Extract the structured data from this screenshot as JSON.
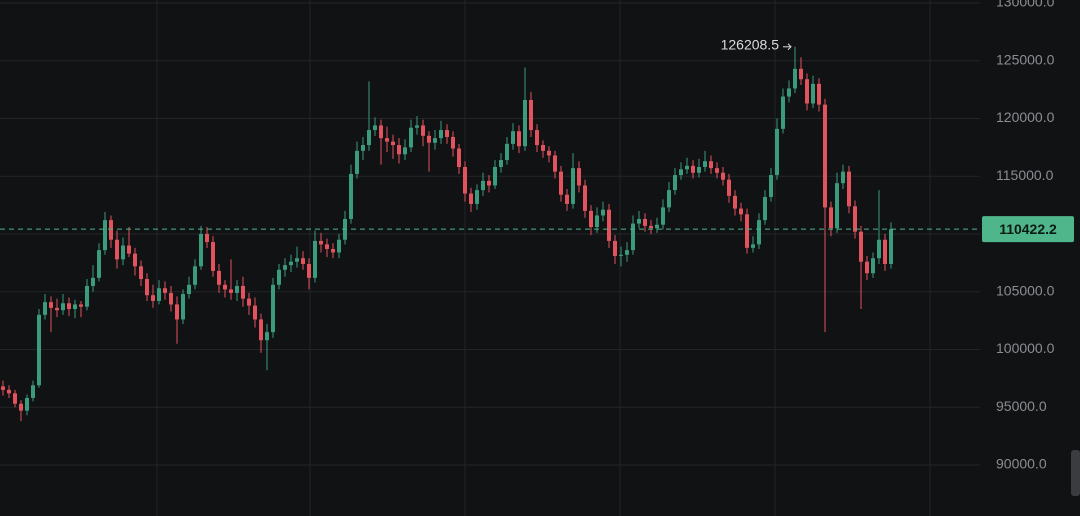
{
  "chart_data": {
    "type": "candlestick",
    "up_color": "#3a9b7d",
    "down_color": "#e2535e",
    "last_color": "#4fb68c",
    "ylim": [
      85580,
      130260
    ],
    "yticks": [
      {
        "value": 90000,
        "label": "90000.0"
      },
      {
        "value": 95000,
        "label": "95000.0"
      },
      {
        "value": 100000,
        "label": "100000.0"
      },
      {
        "value": 105000,
        "label": "105000.0"
      },
      {
        "value": 110000,
        "label": "110000.0"
      },
      {
        "value": 115000,
        "label": "115000.0"
      },
      {
        "value": 120000,
        "label": "120000.0"
      },
      {
        "value": 125000,
        "label": "125000.0"
      },
      {
        "value": 130000,
        "label": "130000.0"
      }
    ],
    "grid": true,
    "annotate_high": 132,
    "last_price_line": true,
    "candles": [
      [
        96800,
        97300,
        96000,
        96500
      ],
      [
        96500,
        96900,
        95800,
        96200
      ],
      [
        96200,
        96500,
        95000,
        95300
      ],
      [
        95300,
        95600,
        93800,
        94700
      ],
      [
        94700,
        96100,
        94300,
        95800
      ],
      [
        95800,
        97300,
        95500,
        96900
      ],
      [
        96900,
        103500,
        96700,
        103000
      ],
      [
        103000,
        104800,
        102600,
        104100
      ],
      [
        104100,
        104600,
        101500,
        103600
      ],
      [
        103600,
        104400,
        102800,
        103400
      ],
      [
        103400,
        104800,
        103000,
        104000
      ],
      [
        104000,
        104500,
        102900,
        103500
      ],
      [
        103500,
        104300,
        102700,
        103900
      ],
      [
        103900,
        104200,
        102800,
        103700
      ],
      [
        103700,
        106100,
        103400,
        105500
      ],
      [
        105500,
        107300,
        105000,
        106200
      ],
      [
        106200,
        109200,
        105900,
        108600
      ],
      [
        108600,
        111900,
        108200,
        111200
      ],
      [
        111200,
        111600,
        108800,
        109500
      ],
      [
        109500,
        110300,
        107000,
        107800
      ],
      [
        107800,
        109700,
        107300,
        109000
      ],
      [
        109000,
        110600,
        108000,
        108300
      ],
      [
        108300,
        108800,
        106400,
        107200
      ],
      [
        107200,
        107700,
        105500,
        106100
      ],
      [
        106100,
        106600,
        104200,
        104700
      ],
      [
        104700,
        105600,
        103600,
        104200
      ],
      [
        104200,
        106000,
        103900,
        105300
      ],
      [
        105300,
        105900,
        104300,
        104900
      ],
      [
        104900,
        105500,
        103300,
        103900
      ],
      [
        103900,
        104600,
        100500,
        102600
      ],
      [
        102600,
        105200,
        102200,
        104800
      ],
      [
        104800,
        106300,
        104400,
        105600
      ],
      [
        105600,
        107800,
        105200,
        107200
      ],
      [
        107200,
        110700,
        106900,
        110000
      ],
      [
        110000,
        110600,
        108800,
        109300
      ],
      [
        109300,
        109800,
        106300,
        106800
      ],
      [
        106800,
        107400,
        104900,
        105600
      ],
      [
        105600,
        106000,
        104500,
        105200
      ],
      [
        105200,
        107800,
        104300,
        104900
      ],
      [
        104900,
        106000,
        104200,
        105500
      ],
      [
        105500,
        106300,
        103700,
        104400
      ],
      [
        104400,
        104900,
        103000,
        103800
      ],
      [
        103800,
        104500,
        101900,
        102600
      ],
      [
        102600,
        103100,
        99700,
        100800
      ],
      [
        100800,
        102200,
        98200,
        101500
      ],
      [
        101500,
        106200,
        101000,
        105600
      ],
      [
        105600,
        107400,
        105200,
        106900
      ],
      [
        106900,
        107900,
        106300,
        107300
      ],
      [
        107300,
        108200,
        106700,
        107600
      ],
      [
        107600,
        108900,
        107100,
        107900
      ],
      [
        107900,
        108500,
        106900,
        107400
      ],
      [
        107400,
        107900,
        105200,
        106200
      ],
      [
        106200,
        110300,
        105800,
        109400
      ],
      [
        109400,
        110100,
        108400,
        109100
      ],
      [
        109100,
        109600,
        108000,
        108700
      ],
      [
        108700,
        109200,
        107900,
        108400
      ],
      [
        108400,
        110000,
        107900,
        109500
      ],
      [
        109500,
        112000,
        109100,
        111300
      ],
      [
        111300,
        116000,
        110900,
        115200
      ],
      [
        115200,
        118000,
        114800,
        117200
      ],
      [
        117200,
        118400,
        116400,
        117700
      ],
      [
        117700,
        123200,
        117200,
        119000
      ],
      [
        119000,
        120100,
        118500,
        119400
      ],
      [
        119400,
        119900,
        116000,
        118300
      ],
      [
        118300,
        119300,
        117100,
        118000
      ],
      [
        118000,
        118600,
        116500,
        117700
      ],
      [
        117700,
        118300,
        116100,
        116900
      ],
      [
        116900,
        118200,
        116400,
        117500
      ],
      [
        117500,
        119900,
        117100,
        119200
      ],
      [
        119200,
        120200,
        118600,
        119400
      ],
      [
        119400,
        119900,
        117600,
        118500
      ],
      [
        118500,
        118900,
        115400,
        117900
      ],
      [
        117900,
        119000,
        117300,
        118300
      ],
      [
        118300,
        119800,
        117800,
        119000
      ],
      [
        119000,
        119500,
        117800,
        118400
      ],
      [
        118400,
        118900,
        116700,
        117400
      ],
      [
        117400,
        117800,
        115200,
        115800
      ],
      [
        115800,
        116300,
        112800,
        113500
      ],
      [
        113500,
        114000,
        111900,
        112600
      ],
      [
        112600,
        114300,
        112100,
        113800
      ],
      [
        113800,
        115300,
        113300,
        114600
      ],
      [
        114600,
        115100,
        113600,
        114200
      ],
      [
        114200,
        116400,
        113900,
        115800
      ],
      [
        115800,
        117000,
        115300,
        116400
      ],
      [
        116400,
        118400,
        116000,
        117800
      ],
      [
        117800,
        119600,
        117300,
        118900
      ],
      [
        118900,
        119400,
        117000,
        117600
      ],
      [
        117600,
        124400,
        117200,
        121600
      ],
      [
        121600,
        122300,
        118400,
        119000
      ],
      [
        119000,
        119500,
        117100,
        117700
      ],
      [
        117700,
        118100,
        116600,
        117200
      ],
      [
        117200,
        117600,
        116200,
        116800
      ],
      [
        116800,
        117200,
        114800,
        115400
      ],
      [
        115400,
        115900,
        112800,
        113400
      ],
      [
        113400,
        113900,
        112000,
        112600
      ],
      [
        112600,
        117000,
        112200,
        115700
      ],
      [
        115700,
        116300,
        113600,
        114200
      ],
      [
        114200,
        114700,
        111400,
        112000
      ],
      [
        112000,
        112500,
        109900,
        110600
      ],
      [
        110600,
        112300,
        110100,
        111600
      ],
      [
        111600,
        112800,
        111100,
        112100
      ],
      [
        112100,
        112600,
        108800,
        109400
      ],
      [
        109400,
        109900,
        107400,
        108100
      ],
      [
        108100,
        108900,
        107200,
        108200
      ],
      [
        108200,
        109300,
        107600,
        108600
      ],
      [
        108600,
        111600,
        108200,
        110900
      ],
      [
        110900,
        112000,
        110500,
        111300
      ],
      [
        111300,
        111800,
        110200,
        110700
      ],
      [
        110700,
        111200,
        110000,
        110500
      ],
      [
        110500,
        111400,
        110100,
        110800
      ],
      [
        110800,
        113000,
        110400,
        112300
      ],
      [
        112300,
        114500,
        111900,
        113800
      ],
      [
        113800,
        115700,
        113400,
        115100
      ],
      [
        115100,
        116200,
        114700,
        115600
      ],
      [
        115600,
        116600,
        115200,
        115900
      ],
      [
        115900,
        116400,
        114800,
        115300
      ],
      [
        115300,
        116500,
        114900,
        115800
      ],
      [
        115800,
        117200,
        115400,
        116300
      ],
      [
        116300,
        116800,
        115200,
        115700
      ],
      [
        115700,
        116200,
        114800,
        115300
      ],
      [
        115300,
        115800,
        114200,
        114700
      ],
      [
        114700,
        115200,
        112700,
        113300
      ],
      [
        113300,
        113800,
        111600,
        112200
      ],
      [
        112200,
        112700,
        111100,
        111700
      ],
      [
        111700,
        112200,
        108300,
        108800
      ],
      [
        108800,
        109800,
        108400,
        109100
      ],
      [
        109100,
        111800,
        108700,
        111200
      ],
      [
        111200,
        113800,
        110800,
        113200
      ],
      [
        113200,
        115700,
        112800,
        115100
      ],
      [
        115100,
        120000,
        114700,
        119100
      ],
      [
        119100,
        122600,
        118700,
        121900
      ],
      [
        121900,
        123300,
        121400,
        122600
      ],
      [
        122600,
        126208.5,
        122200,
        124300
      ],
      [
        124300,
        125300,
        122900,
        123400
      ],
      [
        123400,
        123900,
        120700,
        121300
      ],
      [
        121300,
        123700,
        120900,
        123000
      ],
      [
        123000,
        123500,
        120600,
        121200
      ],
      [
        121200,
        121700,
        101500,
        112300
      ],
      [
        112300,
        112800,
        109800,
        110500
      ],
      [
        110500,
        115300,
        110100,
        114400
      ],
      [
        114400,
        116000,
        113900,
        115400
      ],
      [
        115400,
        115900,
        111800,
        112400
      ],
      [
        112400,
        112900,
        109600,
        110200
      ],
      [
        110200,
        110700,
        103500,
        107600
      ],
      [
        107600,
        108100,
        106000,
        106600
      ],
      [
        106600,
        108400,
        106200,
        107900
      ],
      [
        107900,
        113800,
        107400,
        109500
      ],
      [
        109500,
        110000,
        106800,
        107400
      ],
      [
        107400,
        111000,
        107000,
        110422.2
      ]
    ]
  }
}
